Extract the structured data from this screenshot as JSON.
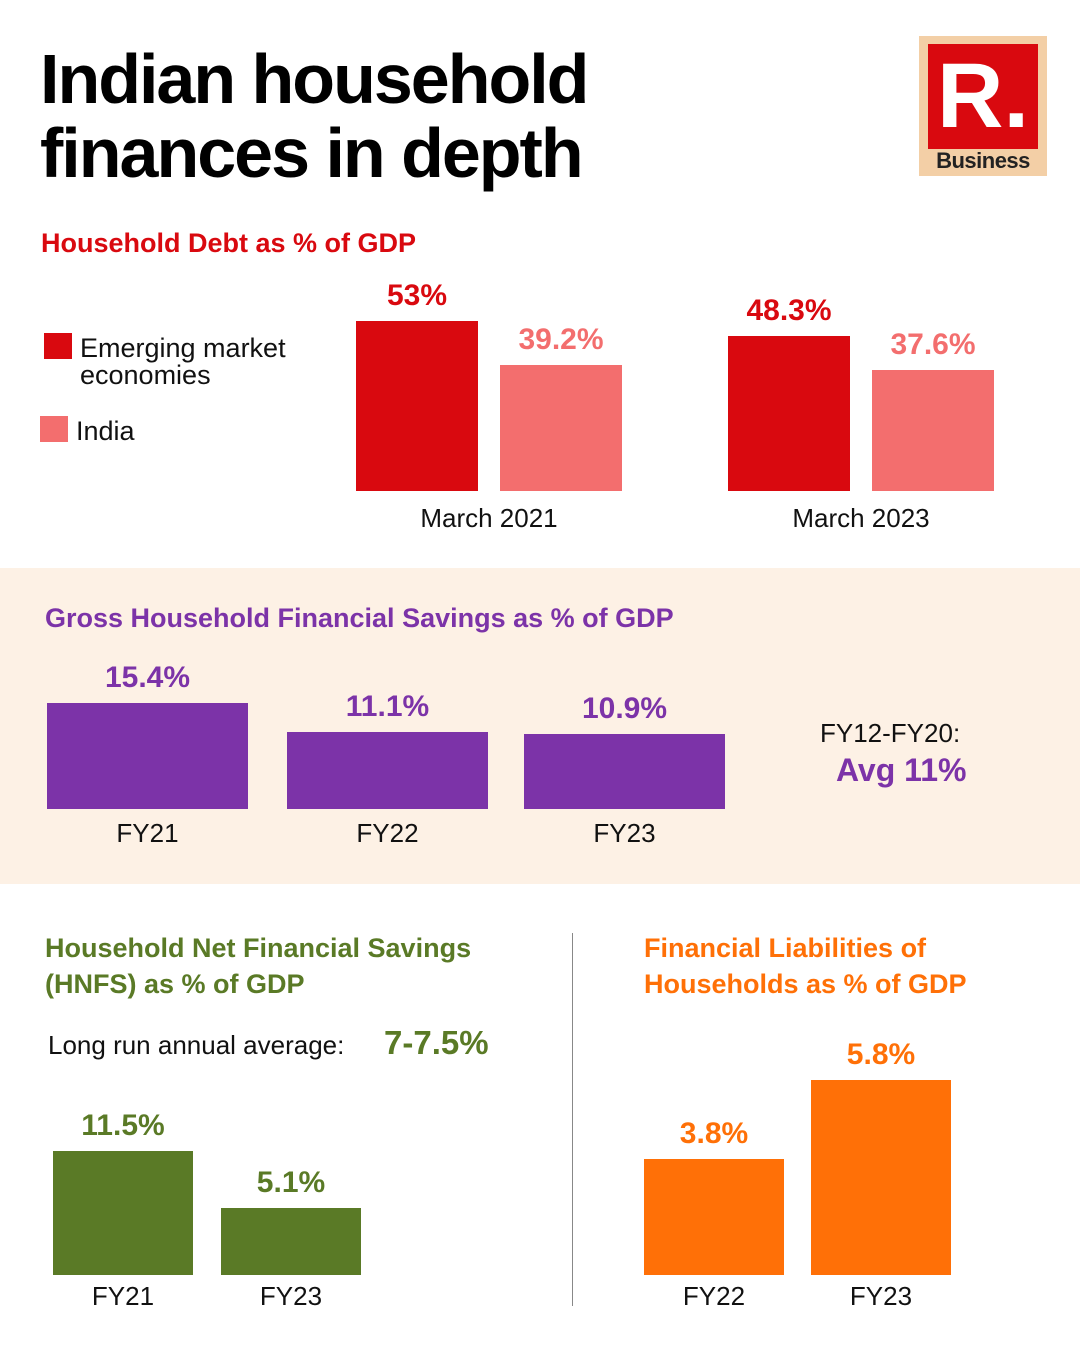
{
  "header": {
    "title_line1": "Indian household",
    "title_line2": "finances in depth",
    "logo_mark": "R.",
    "logo_text": "Business"
  },
  "colors": {
    "emerging": "#d9090f",
    "india": "#f36e6e",
    "gross": "#7c33a8",
    "net": "#5a7a26",
    "liab": "#ff7007"
  },
  "chart_data": [
    {
      "type": "bar",
      "title": "Household Debt as % of GDP",
      "categories": [
        "March 2021",
        "March 2023"
      ],
      "legend": [
        "Emerging market economies",
        "India"
      ],
      "legend_line1": "Emerging market",
      "legend_line2": "economies",
      "series": [
        {
          "name": "Emerging market economies",
          "values": [
            53,
            48.3
          ],
          "labels": [
            "53%",
            "48.3%"
          ]
        },
        {
          "name": "India",
          "values": [
            39.2,
            37.6
          ],
          "labels": [
            "39.2%",
            "37.6%"
          ]
        }
      ]
    },
    {
      "type": "bar",
      "title": "Gross Household Financial Savings as % of GDP",
      "categories": [
        "FY21",
        "FY22",
        "FY23"
      ],
      "values": [
        15.4,
        11.1,
        10.9
      ],
      "labels": [
        "15.4%",
        "11.1%",
        "10.9%"
      ],
      "annotation": {
        "label": "FY12-FY20:",
        "value": "Avg 11%"
      }
    },
    {
      "type": "bar",
      "title_line1": "Household Net Financial Savings",
      "title_line2": "(HNFS) as % of GDP",
      "categories": [
        "FY21",
        "FY23"
      ],
      "values": [
        11.5,
        5.1
      ],
      "labels": [
        "11.5%",
        "5.1%"
      ],
      "annotation": {
        "label": "Long run annual average:",
        "value": "7-7.5%"
      }
    },
    {
      "type": "bar",
      "title_line1": "Financial Liabilities of",
      "title_line2": "Households as % of GDP",
      "categories": [
        "FY22",
        "FY23"
      ],
      "values": [
        3.8,
        5.8
      ],
      "labels": [
        "3.8%",
        "5.8%"
      ]
    }
  ]
}
